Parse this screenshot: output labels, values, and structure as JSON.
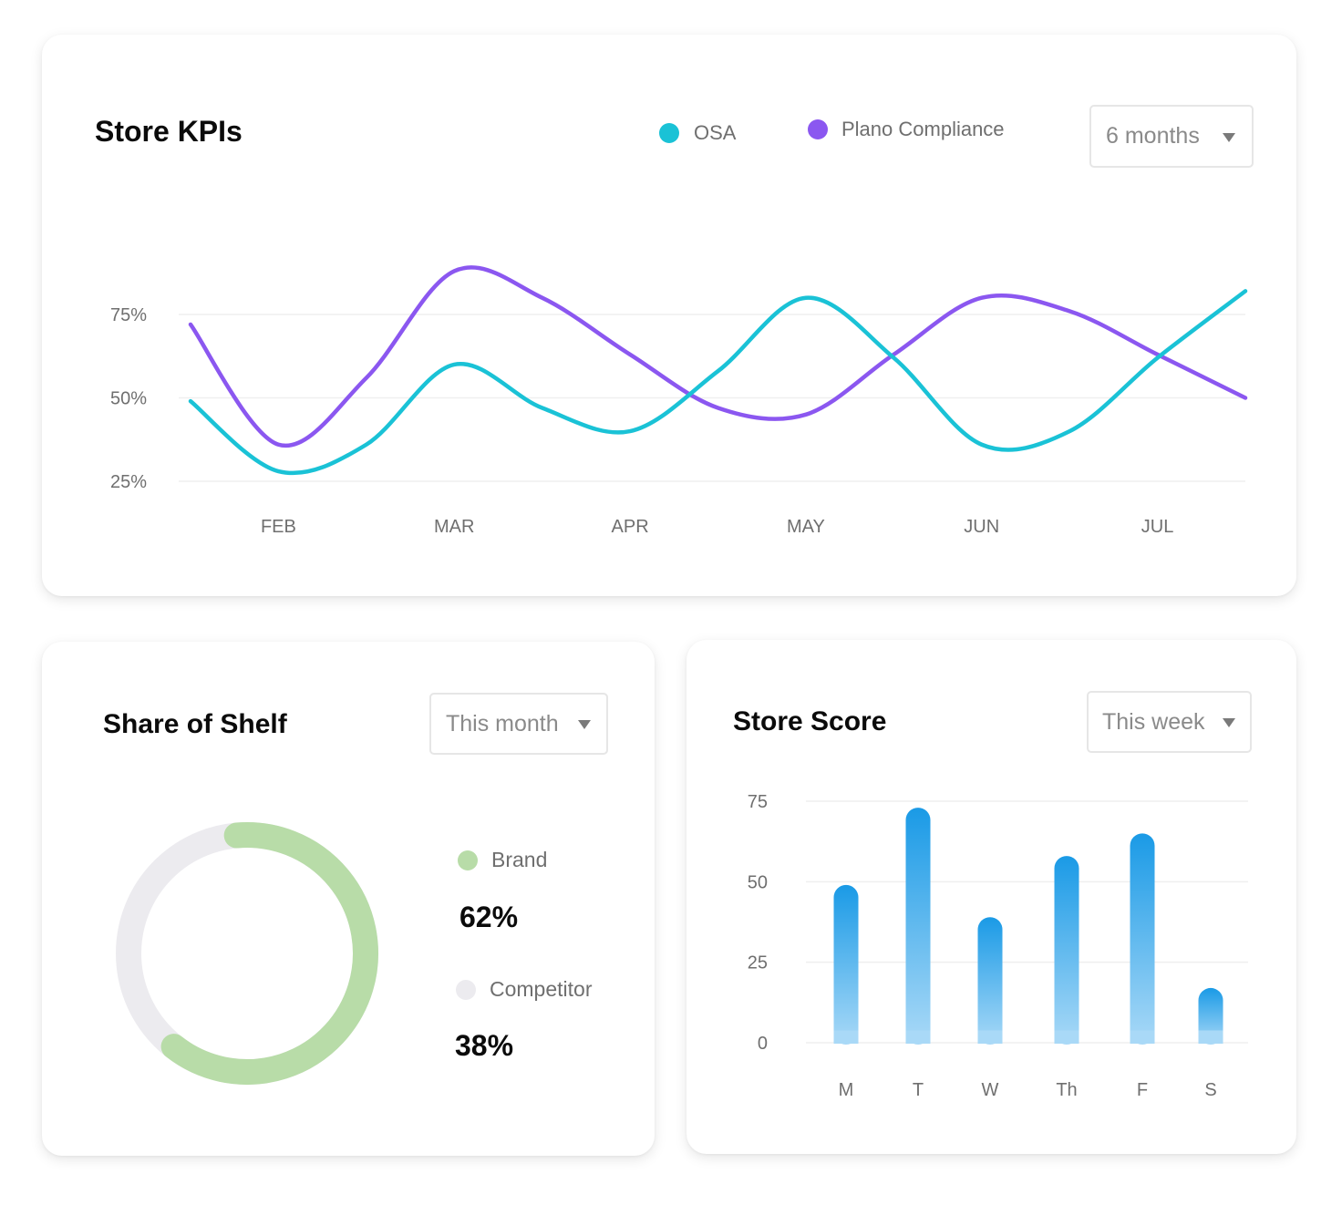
{
  "kpi": {
    "title": "Store KPIs",
    "legend": [
      {
        "label": "OSA",
        "color": "#1ac2d6"
      },
      {
        "label": "Plano Compliance",
        "color": "#8b57f0"
      }
    ],
    "period": "6 months"
  },
  "shelf": {
    "title": "Share of Shelf",
    "period": "This month",
    "brand_label": "Brand",
    "brand_pct": "62%",
    "competitor_label": "Competitor",
    "competitor_pct": "38%"
  },
  "score": {
    "title": "Store Score",
    "period": "This week"
  },
  "chart_data": [
    {
      "type": "line",
      "title": "Store KPIs",
      "x": [
        "",
        "FEB",
        "",
        "MAR",
        "",
        "APR",
        "",
        "MAY",
        "",
        "JUN",
        "",
        "JUL",
        ""
      ],
      "y_ticks": [
        "75%",
        "50%",
        "25%"
      ],
      "ylim": [
        25,
        75
      ],
      "grid": true,
      "legend": "top-right",
      "series": [
        {
          "name": "OSA",
          "color": "#1ac2d6",
          "values": [
            49,
            28,
            36,
            60,
            47,
            40,
            58,
            80,
            62,
            36,
            40,
            62,
            82
          ]
        },
        {
          "name": "Plano Compliance",
          "color": "#8b57f0",
          "values": [
            72,
            36,
            56,
            88,
            80,
            63,
            47,
            45,
            63,
            80,
            76,
            63,
            50
          ]
        }
      ]
    },
    {
      "type": "pie",
      "title": "Share of Shelf",
      "slices": [
        {
          "label": "Brand",
          "value": 62,
          "color": "#b8dca8"
        },
        {
          "label": "Competitor",
          "value": 38,
          "color": "#ecebef"
        }
      ]
    },
    {
      "type": "bar",
      "title": "Store Score",
      "categories": [
        "M",
        "T",
        "W",
        "Th",
        "F",
        "S"
      ],
      "values": [
        49,
        73,
        39,
        58,
        65,
        17
      ],
      "y_ticks": [
        "75",
        "50",
        "25",
        "0"
      ],
      "ylim": [
        0,
        75
      ],
      "grid": true,
      "color_top": "#1a9ae6",
      "color_bottom": "#a9d9f7"
    }
  ]
}
